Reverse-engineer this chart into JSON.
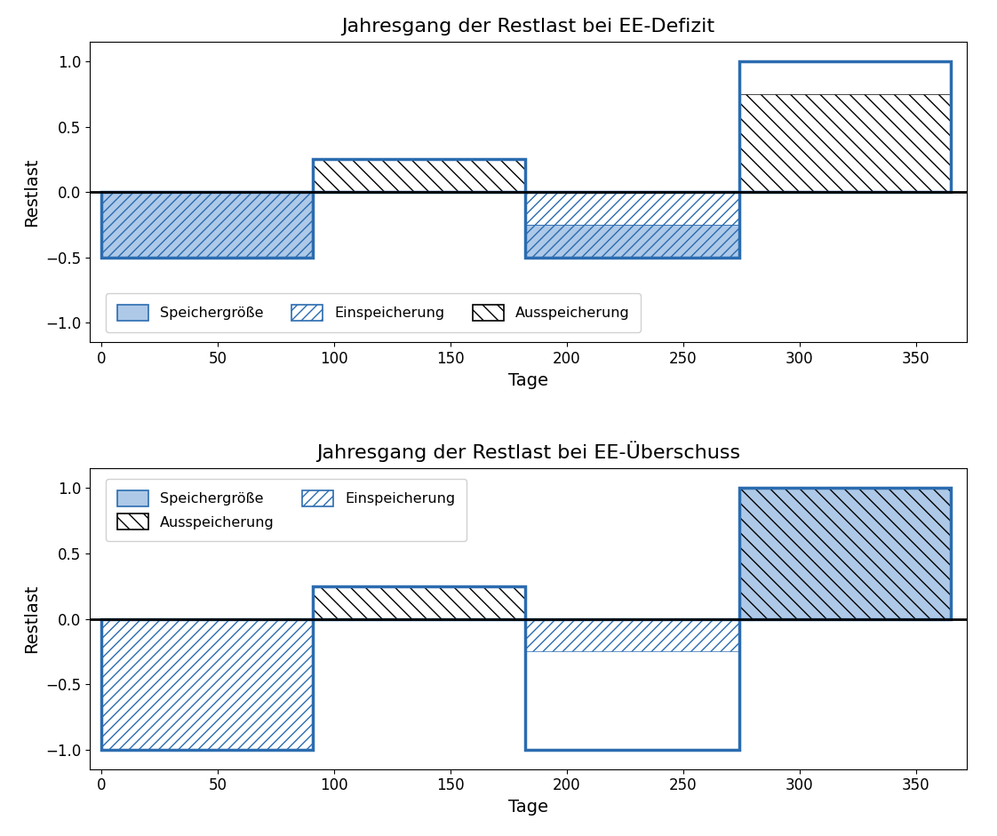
{
  "top_title": "Jahresgang der Restlast bei EE-Defizit",
  "bottom_title": "Jahresgang der Restlast bei EE-Überschuss",
  "xlabel": "Tage",
  "ylabel": "Restlast",
  "ylim": [
    -1.15,
    1.15
  ],
  "xlim": [
    -5,
    372
  ],
  "yticks": [
    -1.0,
    -0.5,
    0.0,
    0.5,
    1.0
  ],
  "xticks": [
    0,
    50,
    100,
    150,
    200,
    250,
    300,
    350
  ],
  "blue_fill": "#aec9e8",
  "blue_edge": "#2b6cb0",
  "q_boundaries": [
    0,
    91,
    182,
    274,
    365
  ],
  "legend_speicher_label": "Speichergröße",
  "legend_ein_label": "Einspeicherung",
  "legend_aus_label": "Ausspeicherung"
}
